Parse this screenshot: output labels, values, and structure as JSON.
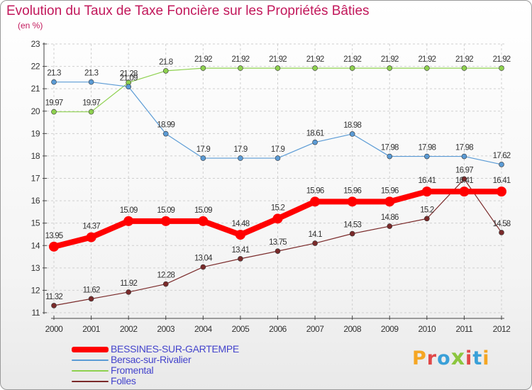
{
  "header": {
    "title": "Evolution du Taux de Taxe Foncière sur les Propriétés Bâties",
    "subtitle": "(en %)"
  },
  "logo": {
    "text": "Proxiti",
    "colors": [
      "#f5a623",
      "#e04848",
      "#3aa0d8",
      "#8cc63f",
      "#e04848",
      "#3aa0d8",
      "#f5a623"
    ]
  },
  "chart_data": {
    "type": "line",
    "title": "Evolution du Taux de Taxe Foncière sur les Propriétés Bâties",
    "subtitle": "(en %)",
    "xlabel": "",
    "ylabel": "",
    "categories": [
      "2000",
      "2001",
      "2002",
      "2003",
      "2004",
      "2005",
      "2006",
      "2007",
      "2008",
      "2009",
      "2010",
      "2011",
      "2012"
    ],
    "ylim": [
      11,
      23
    ],
    "yticks": [
      11,
      12,
      13,
      14,
      15,
      16,
      17,
      18,
      19,
      20,
      21,
      22,
      23
    ],
    "grid": true,
    "legend_position": "bottom-left",
    "series": [
      {
        "name": "BESSINES-SUR-GARTEMPE",
        "color": "#ff0000",
        "values": [
          13.95,
          14.37,
          15.09,
          15.09,
          15.09,
          14.48,
          15.2,
          15.96,
          15.96,
          15.96,
          16.41,
          16.41,
          16.41
        ],
        "labels": [
          "13.95",
          "14.37",
          "15.09",
          "15.09",
          "15.09",
          "14.48",
          "15.2",
          "15.96",
          "15.96",
          "15.96",
          "16.41",
          "16.41",
          "16.41"
        ]
      },
      {
        "name": "Bersac-sur-Rivalier",
        "color": "#5b9bd5",
        "values": [
          21.3,
          21.3,
          21.09,
          18.99,
          17.9,
          17.9,
          17.9,
          18.61,
          18.98,
          17.98,
          17.98,
          17.98,
          17.62
        ],
        "labels": [
          "21.3",
          "21.3",
          "21.09",
          "18.99",
          "17.9",
          "17.9",
          "17.9",
          "18.61",
          "18.98",
          "17.98",
          "17.98",
          "17.98",
          "17.62"
        ]
      },
      {
        "name": "Fromental",
        "color": "#8ed14f",
        "values": [
          19.97,
          19.97,
          21.28,
          21.8,
          21.92,
          21.92,
          21.92,
          21.92,
          21.92,
          21.92,
          21.92,
          21.92,
          21.92
        ],
        "labels": [
          "19.97",
          "19.97",
          "21.28",
          "21.8",
          "21.92",
          "21.92",
          "21.92",
          "21.92",
          "21.92",
          "21.92",
          "21.92",
          "21.92",
          "21.92"
        ]
      },
      {
        "name": "Folles",
        "color": "#7a2a2a",
        "values": [
          11.32,
          11.62,
          11.92,
          12.28,
          13.04,
          13.41,
          13.75,
          14.1,
          14.53,
          14.86,
          15.2,
          16.97,
          14.58
        ],
        "labels": [
          "11.32",
          "11.62",
          "11.92",
          "12.28",
          "13.04",
          "13.41",
          "13.75",
          "14.1",
          "14.53",
          "14.86",
          "15.2",
          "16.97",
          "14.58"
        ]
      }
    ]
  }
}
